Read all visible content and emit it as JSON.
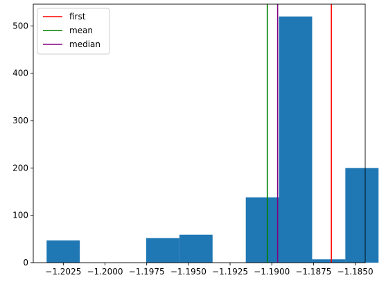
{
  "chart_data": {
    "type": "bar",
    "title": "",
    "xlabel": "",
    "ylabel": "",
    "xlim": [
      -1.2043,
      -1.1844
    ],
    "ylim": [
      0,
      546
    ],
    "bins": [
      {
        "x0": -1.2035,
        "x1": -1.20151,
        "value": 47
      },
      {
        "x0": -1.20151,
        "x1": -1.19952,
        "value": 0
      },
      {
        "x0": -1.19952,
        "x1": -1.19753,
        "value": 0
      },
      {
        "x0": -1.19753,
        "x1": -1.19554,
        "value": 52
      },
      {
        "x0": -1.19554,
        "x1": -1.19355,
        "value": 59
      },
      {
        "x0": -1.19355,
        "x1": -1.19156,
        "value": 0
      },
      {
        "x0": -1.19156,
        "x1": -1.18957,
        "value": 138
      },
      {
        "x0": -1.18957,
        "x1": -1.18758,
        "value": 520
      },
      {
        "x0": -1.18758,
        "x1": -1.18559,
        "value": 7
      },
      {
        "x0": -1.18559,
        "x1": -1.1836,
        "value": 200
      }
    ],
    "bar_color": "#1f77b4",
    "vlines": [
      {
        "name": "first",
        "x": -1.18643,
        "color": "#ff0000"
      },
      {
        "name": "mean",
        "x": -1.19027,
        "color": "#008000"
      },
      {
        "name": "median",
        "x": -1.18965,
        "color": "#800080"
      }
    ],
    "xticks": [
      {
        "value": -1.2025,
        "label": "−1.2025"
      },
      {
        "value": -1.2,
        "label": "−1.2000"
      },
      {
        "value": -1.1975,
        "label": "−1.1975"
      },
      {
        "value": -1.195,
        "label": "−1.1950"
      },
      {
        "value": -1.1925,
        "label": "−1.1925"
      },
      {
        "value": -1.19,
        "label": "−1.1900"
      },
      {
        "value": -1.1875,
        "label": "−1.1875"
      },
      {
        "value": -1.185,
        "label": "−1.1850"
      }
    ],
    "yticks": [
      {
        "value": 0,
        "label": "0"
      },
      {
        "value": 100,
        "label": "100"
      },
      {
        "value": 200,
        "label": "200"
      },
      {
        "value": 300,
        "label": "300"
      },
      {
        "value": 400,
        "label": "400"
      },
      {
        "value": 500,
        "label": "500"
      }
    ],
    "legend": {
      "placement": "upper-left",
      "entries": [
        {
          "label": "first",
          "color": "#ff0000"
        },
        {
          "label": "mean",
          "color": "#008000"
        },
        {
          "label": "median",
          "color": "#800080"
        }
      ]
    },
    "grid": false
  }
}
